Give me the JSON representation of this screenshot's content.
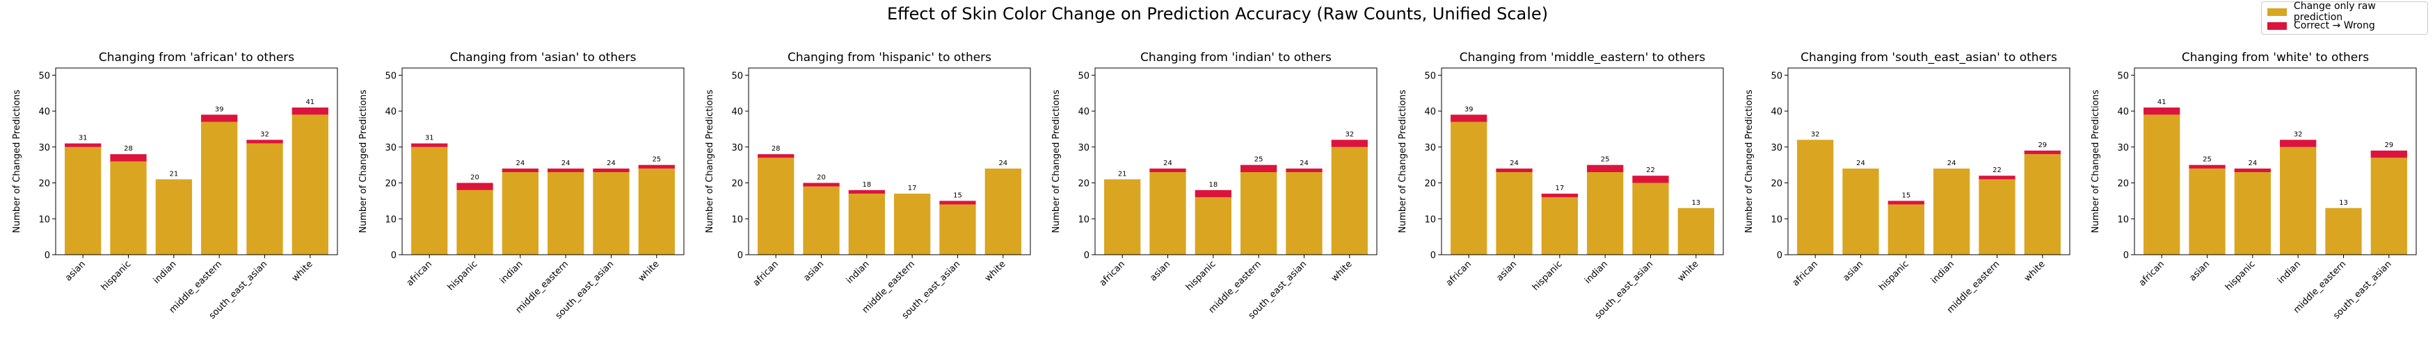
{
  "figure": {
    "title": "Effect of Skin Color Change on Prediction Accuracy (Raw Counts, Unified Scale)",
    "ylabel": "Number of Changed Predictions",
    "legend": [
      {
        "label": "Change only raw prediction",
        "color": "#DAA520"
      },
      {
        "label": "Correct → Wrong",
        "color": "#DC143C"
      }
    ]
  },
  "chart_data": [
    {
      "type": "bar",
      "title": "Changing from 'african' to others",
      "categories": [
        "asian",
        "hispanic",
        "indian",
        "middle_eastern",
        "south_east_asian",
        "white"
      ],
      "series": [
        {
          "name": "Change only raw prediction",
          "values": [
            30,
            26,
            21,
            37,
            31,
            39
          ]
        },
        {
          "name": "Correct → Wrong",
          "values": [
            1,
            2,
            0,
            2,
            1,
            2
          ]
        }
      ],
      "totals": [
        31,
        28,
        21,
        39,
        32,
        41
      ],
      "ylabel": "Number of Changed Predictions",
      "ylim": [
        0,
        52
      ],
      "yticks": [
        0,
        10,
        20,
        30,
        40,
        50
      ]
    },
    {
      "type": "bar",
      "title": "Changing from 'asian' to others",
      "categories": [
        "african",
        "hispanic",
        "indian",
        "middle_eastern",
        "south_east_asian",
        "white"
      ],
      "series": [
        {
          "name": "Change only raw prediction",
          "values": [
            30,
            18,
            23,
            23,
            23,
            24
          ]
        },
        {
          "name": "Correct → Wrong",
          "values": [
            1,
            2,
            1,
            1,
            1,
            1
          ]
        }
      ],
      "totals": [
        31,
        20,
        24,
        24,
        24,
        25
      ],
      "ylabel": "Number of Changed Predictions",
      "ylim": [
        0,
        52
      ],
      "yticks": [
        0,
        10,
        20,
        30,
        40,
        50
      ]
    },
    {
      "type": "bar",
      "title": "Changing from 'hispanic' to others",
      "categories": [
        "african",
        "asian",
        "indian",
        "middle_eastern",
        "south_east_asian",
        "white"
      ],
      "series": [
        {
          "name": "Change only raw prediction",
          "values": [
            27,
            19,
            17,
            17,
            14,
            24
          ]
        },
        {
          "name": "Correct → Wrong",
          "values": [
            1,
            1,
            1,
            0,
            1,
            0
          ]
        }
      ],
      "totals": [
        28,
        20,
        18,
        17,
        15,
        24
      ],
      "ylabel": "Number of Changed Predictions",
      "ylim": [
        0,
        52
      ],
      "yticks": [
        0,
        10,
        20,
        30,
        40,
        50
      ]
    },
    {
      "type": "bar",
      "title": "Changing from 'indian' to others",
      "categories": [
        "african",
        "asian",
        "hispanic",
        "middle_eastern",
        "south_east_asian",
        "white"
      ],
      "series": [
        {
          "name": "Change only raw prediction",
          "values": [
            21,
            23,
            16,
            23,
            23,
            30
          ]
        },
        {
          "name": "Correct → Wrong",
          "values": [
            0,
            1,
            2,
            2,
            1,
            2
          ]
        }
      ],
      "totals": [
        21,
        24,
        18,
        25,
        24,
        32
      ],
      "ylabel": "Number of Changed Predictions",
      "ylim": [
        0,
        52
      ],
      "yticks": [
        0,
        10,
        20,
        30,
        40,
        50
      ]
    },
    {
      "type": "bar",
      "title": "Changing from 'middle_eastern' to others",
      "categories": [
        "african",
        "asian",
        "hispanic",
        "indian",
        "south_east_asian",
        "white"
      ],
      "series": [
        {
          "name": "Change only raw prediction",
          "values": [
            37,
            23,
            16,
            23,
            20,
            13
          ]
        },
        {
          "name": "Correct → Wrong",
          "values": [
            2,
            1,
            1,
            2,
            2,
            0
          ]
        }
      ],
      "totals": [
        39,
        24,
        17,
        25,
        22,
        13
      ],
      "ylabel": "Number of Changed Predictions",
      "ylim": [
        0,
        52
      ],
      "yticks": [
        0,
        10,
        20,
        30,
        40,
        50
      ]
    },
    {
      "type": "bar",
      "title": "Changing from 'south_east_asian' to others",
      "categories": [
        "african",
        "asian",
        "hispanic",
        "indian",
        "middle_eastern",
        "white"
      ],
      "series": [
        {
          "name": "Change only raw prediction",
          "values": [
            32,
            24,
            14,
            24,
            21,
            28
          ]
        },
        {
          "name": "Correct → Wrong",
          "values": [
            0,
            0,
            1,
            0,
            1,
            1
          ]
        }
      ],
      "totals": [
        32,
        24,
        15,
        24,
        22,
        29
      ],
      "ylabel": "Number of Changed Predictions",
      "ylim": [
        0,
        52
      ],
      "yticks": [
        0,
        10,
        20,
        30,
        40,
        50
      ]
    },
    {
      "type": "bar",
      "title": "Changing from 'white' to others",
      "categories": [
        "african",
        "asian",
        "hispanic",
        "indian",
        "middle_eastern",
        "south_east_asian"
      ],
      "series": [
        {
          "name": "Change only raw prediction",
          "values": [
            39,
            24,
            23,
            30,
            13,
            27
          ]
        },
        {
          "name": "Correct → Wrong",
          "values": [
            2,
            1,
            1,
            2,
            0,
            2
          ]
        }
      ],
      "totals": [
        41,
        25,
        24,
        32,
        13,
        29
      ],
      "ylabel": "Number of Changed Predictions",
      "ylim": [
        0,
        52
      ],
      "yticks": [
        0,
        10,
        20,
        30,
        40,
        50
      ]
    }
  ]
}
